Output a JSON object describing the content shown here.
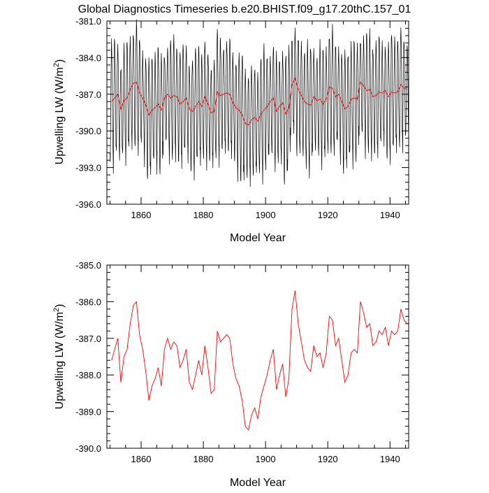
{
  "title": "Global Diagnostics Timeseries b.e20.BHIST.f09_g17.20thC.157_01",
  "colors": {
    "monthly": "#000000",
    "annual": "#ff0000",
    "axis": "#000000"
  },
  "chart_data": [
    {
      "type": "line",
      "xlabel": "Model Year",
      "ylabel_main": "Upwelling LW (W/m",
      "ylabel_sup": "2",
      "ylabel_end": ")",
      "xlim": [
        1849,
        1946
      ],
      "ylim": [
        -396.0,
        -381.0
      ],
      "x_ticks": [
        1860,
        1880,
        1900,
        1920,
        1940
      ],
      "x_tick_labels": [
        "1860",
        "1880",
        "1900",
        "1920",
        "1940"
      ],
      "y_ticks": [
        -396.0,
        -393.0,
        -390.0,
        -387.0,
        -384.0,
        -381.0
      ],
      "y_tick_labels": [
        "-396.0",
        "-393.0",
        "-390.0",
        "-387.0",
        "-384.0",
        "-381.0"
      ],
      "series": [
        {
          "monthly_seasonal_cycle": [
            -392.2,
            -393.0,
            -390.6,
            -388.0,
            -385.9,
            -384.4,
            -383.8,
            -384.4,
            -385.6,
            -387.6,
            -389.8,
            -391.6
          ]
        },
        {
          "annual_ref": "chart_data.1.series.0.values"
        }
      ]
    },
    {
      "type": "line",
      "xlabel": "Model Year",
      "ylabel_main": "Upwelling LW (W/m",
      "ylabel_sup": "2",
      "ylabel_end": ")",
      "xlim": [
        1849,
        1946
      ],
      "ylim": [
        -390.0,
        -385.0
      ],
      "x_ticks": [
        1860,
        1880,
        1900,
        1920,
        1940
      ],
      "x_tick_labels": [
        "1860",
        "1880",
        "1900",
        "1920",
        "1940"
      ],
      "y_ticks": [
        -390.0,
        -389.0,
        -388.0,
        -387.0,
        -386.0,
        -385.0
      ],
      "y_tick_labels": [
        "-390.0",
        "-389.0",
        "-388.0",
        "-387.0",
        "-386.0",
        "-385.0"
      ],
      "series": [
        {
          "x": [
            1850,
            1851,
            1852,
            1853,
            1854,
            1855,
            1856,
            1857,
            1858,
            1859,
            1860,
            1861,
            1862,
            1863,
            1864,
            1865,
            1866,
            1867,
            1868,
            1869,
            1870,
            1871,
            1872,
            1873,
            1874,
            1875,
            1876,
            1877,
            1878,
            1879,
            1880,
            1881,
            1882,
            1883,
            1884,
            1885,
            1886,
            1887,
            1888,
            1889,
            1890,
            1891,
            1892,
            1893,
            1894,
            1895,
            1896,
            1897,
            1898,
            1899,
            1900,
            1901,
            1902,
            1903,
            1904,
            1905,
            1906,
            1907,
            1908,
            1909,
            1910,
            1911,
            1912,
            1913,
            1914,
            1915,
            1916,
            1917,
            1918,
            1919,
            1920,
            1921,
            1922,
            1923,
            1924,
            1925,
            1926,
            1927,
            1928,
            1929,
            1930,
            1931,
            1932,
            1933,
            1934,
            1935,
            1936,
            1937,
            1938,
            1939,
            1940,
            1941,
            1942,
            1943,
            1944,
            1945
          ],
          "values": [
            -387.6,
            -387.3,
            -387.0,
            -388.2,
            -387.5,
            -387.3,
            -386.6,
            -386.1,
            -386.0,
            -386.9,
            -387.3,
            -387.9,
            -388.7,
            -388.3,
            -388.1,
            -387.8,
            -388.3,
            -387.3,
            -387.0,
            -387.3,
            -387.1,
            -387.2,
            -387.8,
            -387.6,
            -387.3,
            -388.2,
            -388.4,
            -388.0,
            -387.6,
            -388.0,
            -387.2,
            -387.8,
            -388.5,
            -388.4,
            -386.8,
            -387.1,
            -387.0,
            -386.9,
            -387.0,
            -387.7,
            -388.1,
            -388.3,
            -388.7,
            -389.4,
            -389.5,
            -389.1,
            -388.9,
            -389.2,
            -388.6,
            -388.3,
            -388.0,
            -387.6,
            -387.3,
            -388.4,
            -388.0,
            -387.7,
            -388.6,
            -388.1,
            -386.2,
            -385.7,
            -386.6,
            -387.1,
            -387.6,
            -387.8,
            -387.9,
            -387.2,
            -387.5,
            -387.4,
            -387.8,
            -387.4,
            -386.4,
            -386.5,
            -387.2,
            -387.0,
            -387.6,
            -388.2,
            -388.0,
            -387.4,
            -387.3,
            -387.4,
            -386.0,
            -386.3,
            -386.7,
            -386.6,
            -387.2,
            -387.1,
            -386.8,
            -386.9,
            -386.7,
            -387.2,
            -386.8,
            -386.9,
            -386.8,
            -386.2,
            -386.5,
            -386.6
          ]
        }
      ]
    }
  ]
}
